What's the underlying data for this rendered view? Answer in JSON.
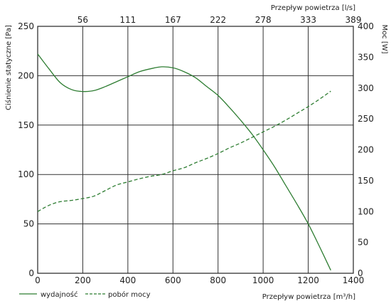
{
  "chart_data": {
    "type": "line",
    "x_axis_bottom": {
      "label": "Przepływ powietrza [m³/h]",
      "range": [
        0,
        1400
      ],
      "ticks": [
        0,
        200,
        400,
        600,
        800,
        1000,
        1200,
        1400
      ]
    },
    "x_axis_top": {
      "label": "Przepływ powietrza [l/s]",
      "tick_labels": [
        "56",
        "111",
        "167",
        "222",
        "278",
        "333",
        "389"
      ],
      "tick_positions_m3h": [
        200,
        400,
        600,
        800,
        1000,
        1200,
        1400
      ]
    },
    "y_axis_left": {
      "label": "Ciśnienie statyczne [Pa]",
      "range": [
        0,
        250
      ],
      "ticks": [
        0,
        50,
        100,
        150,
        200,
        250
      ]
    },
    "y_axis_right": {
      "label": "Moc [W]",
      "range": [
        0,
        400
      ],
      "ticks": [
        0,
        50,
        100,
        150,
        200,
        250,
        300,
        350,
        400
      ]
    },
    "grid": true,
    "legend_position": "bottom-left",
    "series": [
      {
        "name": "wydajność",
        "axis": "left",
        "style": "solid",
        "color": "#2e7d32",
        "x": [
          0,
          50,
          100,
          150,
          200,
          250,
          300,
          350,
          400,
          450,
          500,
          550,
          600,
          650,
          700,
          750,
          800,
          850,
          900,
          950,
          1000,
          1050,
          1100,
          1150,
          1200,
          1250,
          1300
        ],
        "y": [
          222,
          207,
          193,
          186,
          184,
          185,
          189,
          194,
          199,
          204,
          207,
          209,
          208,
          204,
          198,
          189,
          180,
          168,
          155,
          141,
          125,
          108,
          89,
          70,
          50,
          27,
          3
        ]
      },
      {
        "name": "pobór mocy",
        "axis": "right",
        "style": "dashed",
        "color": "#2e7d32",
        "x": [
          0,
          50,
          100,
          150,
          200,
          250,
          300,
          350,
          400,
          450,
          500,
          550,
          600,
          650,
          700,
          750,
          800,
          850,
          900,
          950,
          1000,
          1050,
          1100,
          1150,
          1200,
          1250,
          1300
        ],
        "y": [
          100,
          110,
          116,
          118,
          121,
          125,
          134,
          143,
          148,
          153,
          157,
          160,
          166,
          171,
          179,
          186,
          194,
          203,
          211,
          220,
          229,
          238,
          248,
          259,
          270,
          282,
          295
        ]
      }
    ]
  }
}
